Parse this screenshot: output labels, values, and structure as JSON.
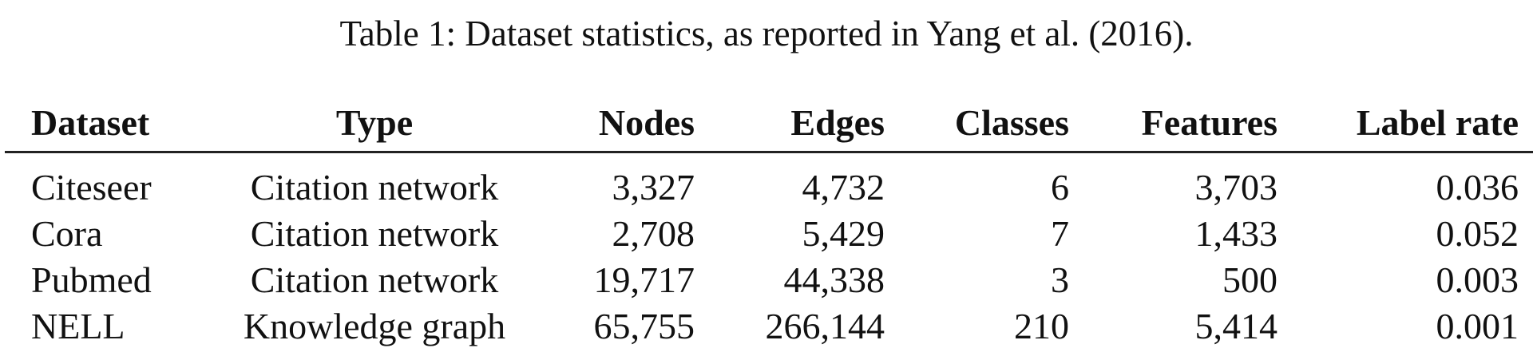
{
  "caption": "Table 1: Dataset statistics, as reported in Yang et al. (2016).",
  "table": {
    "header": [
      "Dataset",
      "Type",
      "Nodes",
      "Edges",
      "Classes",
      "Features",
      "Label rate"
    ],
    "rows": [
      [
        "Citeseer",
        "Citation network",
        "3,327",
        "4,732",
        "6",
        "3,703",
        "0.036"
      ],
      [
        "Cora",
        "Citation network",
        "2,708",
        "5,429",
        "7",
        "1,433",
        "0.052"
      ],
      [
        "Pubmed",
        "Citation network",
        "19,717",
        "44,338",
        "3",
        "500",
        "0.003"
      ],
      [
        "NELL",
        "Knowledge graph",
        "65,755",
        "266,144",
        "210",
        "5,414",
        "0.001"
      ]
    ]
  }
}
